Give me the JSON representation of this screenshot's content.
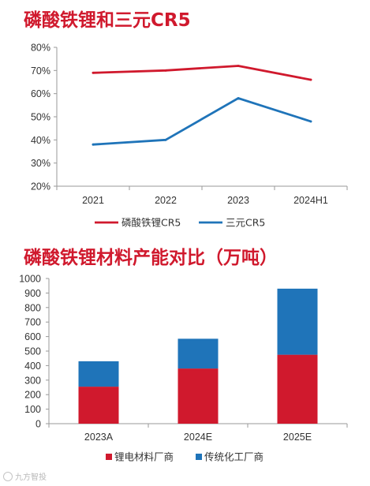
{
  "titles": {
    "chart1": "磷酸铁锂和三元CR5",
    "chart2": "磷酸铁锂材料产能对比（万吨）"
  },
  "watermark": "九方智投",
  "chart_data": [
    {
      "type": "line",
      "title": "磷酸铁锂和三元CR5",
      "categories": [
        "2021",
        "2022",
        "2023",
        "2024H1"
      ],
      "series": [
        {
          "name": "磷酸铁锂CR5",
          "values": [
            69,
            70,
            72,
            66
          ],
          "color": "#d0192d"
        },
        {
          "name": "三元CR5",
          "values": [
            38,
            40,
            58,
            48
          ],
          "color": "#1f74b9"
        }
      ],
      "ylim": [
        20,
        80
      ],
      "yticks": [
        "20%",
        "30%",
        "40%",
        "50%",
        "60%",
        "70%",
        "80%"
      ],
      "ytick_values": [
        20,
        30,
        40,
        50,
        60,
        70,
        80
      ],
      "legend": "bottom",
      "grid": false
    },
    {
      "type": "bar",
      "stacked": true,
      "title": "磷酸铁锂材料产能对比（万吨）",
      "categories": [
        "2023A",
        "2024E",
        "2025E"
      ],
      "series": [
        {
          "name": "锂电材料厂商",
          "values": [
            255,
            380,
            475
          ],
          "color": "#d0192d"
        },
        {
          "name": "传统化工厂商",
          "values": [
            175,
            205,
            455
          ],
          "color": "#1f74b9"
        }
      ],
      "ylim": [
        0,
        1000
      ],
      "yticks": [
        "0",
        "100",
        "200",
        "300",
        "400",
        "500",
        "600",
        "700",
        "800",
        "900",
        "1000"
      ],
      "ytick_values": [
        0,
        100,
        200,
        300,
        400,
        500,
        600,
        700,
        800,
        900,
        1000
      ],
      "legend": "bottom",
      "grid": false
    }
  ]
}
